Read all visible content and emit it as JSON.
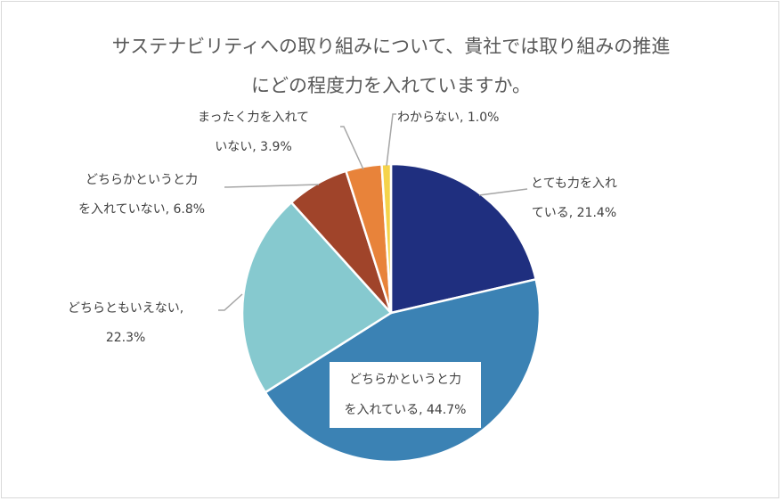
{
  "chart_data": {
    "type": "pie",
    "title": [
      "サステナビリティへの取り組みについて、貴社では取り組みの推進",
      "にどの程度力を入れていますか。"
    ],
    "slices": [
      {
        "label": [
          "とても力を入れ",
          "ている, 21.4%"
        ],
        "category": "とても力を入れている",
        "value": 21.4,
        "color": "#1f2f7f"
      },
      {
        "label": [
          "どちらかというと力",
          "を入れている, 44.7%"
        ],
        "category": "どちらかというと力を入れている",
        "value": 44.7,
        "color": "#3b82b4"
      },
      {
        "label": [
          "どちらともいえない,",
          "22.3%"
        ],
        "category": "どちらともいえない",
        "value": 22.3,
        "color": "#86c9cf"
      },
      {
        "label": [
          "どちらかというと力",
          "を入れていない, 6.8%"
        ],
        "category": "どちらかというと力を入れていない",
        "value": 6.8,
        "color": "#a0442a"
      },
      {
        "label": [
          "まったく力を入れて",
          "いない, 3.9%"
        ],
        "category": "まったく力を入れていない",
        "value": 3.9,
        "color": "#e8833a"
      },
      {
        "label": [
          "わからない, 1.0%"
        ],
        "category": "わからない",
        "value": 1.0,
        "color": "#f5d34a"
      }
    ]
  }
}
